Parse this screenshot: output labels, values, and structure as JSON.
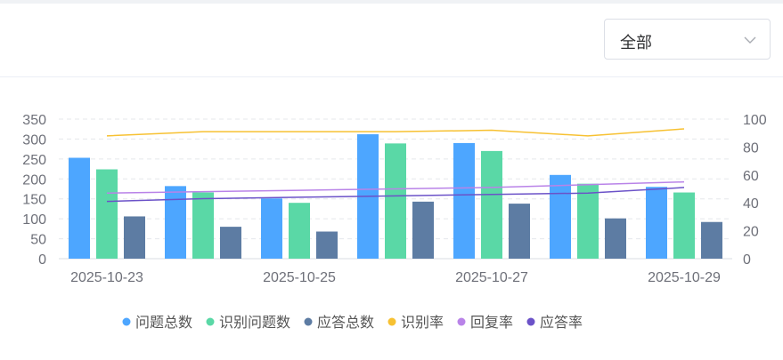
{
  "filter": {
    "selected": "全部"
  },
  "chart_data": {
    "type": "bar",
    "categories": [
      "2025-10-23",
      "2025-10-24",
      "2025-10-25",
      "2025-10-26",
      "2025-10-27",
      "2025-10-28",
      "2025-10-29"
    ],
    "x_tick_labels": [
      "2025-10-23",
      "",
      "2025-10-25",
      "",
      "2025-10-27",
      "",
      "2025-10-29"
    ],
    "series": [
      {
        "name": "问题总数",
        "kind": "bar",
        "axis": "left",
        "color": "#4da6ff",
        "values": [
          253,
          182,
          151,
          312,
          290,
          210,
          180
        ]
      },
      {
        "name": "识别问题数",
        "kind": "bar",
        "axis": "left",
        "color": "#5ad8a6",
        "values": [
          224,
          166,
          140,
          289,
          270,
          188,
          166
        ]
      },
      {
        "name": "应答总数",
        "kind": "bar",
        "axis": "left",
        "color": "#5d7ca3",
        "values": [
          106,
          80,
          68,
          143,
          138,
          101,
          92
        ]
      },
      {
        "name": "识别率",
        "kind": "line",
        "axis": "right",
        "color": "#f7c132",
        "values": [
          88,
          91,
          91,
          91,
          92,
          88,
          93
        ]
      },
      {
        "name": "回复率",
        "kind": "line",
        "axis": "right",
        "color": "#b983e8",
        "values": [
          47,
          48,
          49,
          50,
          51,
          53,
          55
        ]
      },
      {
        "name": "应答率",
        "kind": "line",
        "axis": "right",
        "color": "#6b52c8",
        "values": [
          41,
          43,
          44,
          45,
          46,
          47,
          51
        ]
      }
    ],
    "y_left": {
      "min": 0,
      "max": 350,
      "ticks": [
        0,
        50,
        100,
        150,
        200,
        250,
        300,
        350
      ]
    },
    "y_right": {
      "min": 0,
      "max": 100,
      "ticks": [
        0,
        20,
        40,
        60,
        80,
        100
      ]
    },
    "grid": true,
    "legend_position": "bottom"
  }
}
